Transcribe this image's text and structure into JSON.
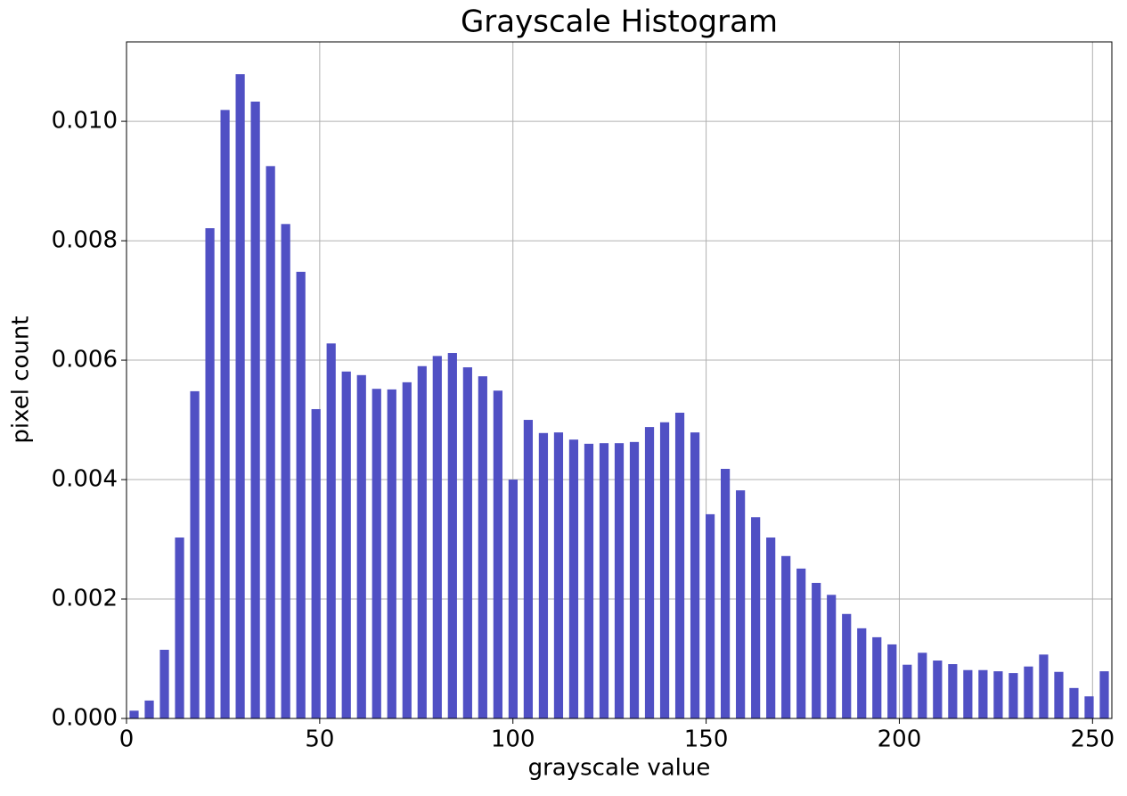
{
  "chart_data": {
    "type": "histogram",
    "title": "Grayscale Histogram",
    "x_label": "grayscale value",
    "y_label": "pixel count",
    "color": "#5050c4",
    "grid": true,
    "bins": [
      0,
      3.92,
      7.85,
      11.77,
      15.69,
      19.62,
      23.54,
      27.46,
      31.38,
      35.31,
      39.23,
      43.15,
      47.08,
      51.0,
      54.92,
      58.85,
      62.77,
      66.69,
      70.62,
      74.54,
      78.46,
      82.38,
      86.31,
      90.23,
      94.15,
      98.08,
      102.0,
      105.92,
      109.85,
      113.77,
      117.69,
      121.62,
      125.54,
      129.46,
      133.38,
      137.31,
      141.23,
      145.15,
      149.08,
      153.0,
      156.92,
      160.85,
      164.77,
      168.69,
      172.62,
      176.54,
      180.46,
      184.38,
      188.31,
      192.23,
      196.15,
      200.08,
      204.0,
      207.92,
      211.85,
      215.77,
      219.69,
      223.62,
      227.54,
      231.46,
      235.38,
      239.31,
      243.23,
      247.15,
      251.08,
      255.0
    ],
    "values": [
      0.00013,
      0.0003,
      0.00115,
      0.00303,
      0.00548,
      0.00821,
      0.01019,
      0.01079,
      0.01033,
      0.00925,
      0.00828,
      0.00748,
      0.00518,
      0.00628,
      0.00581,
      0.00575,
      0.00552,
      0.00551,
      0.00563,
      0.0059,
      0.00607,
      0.00612,
      0.00588,
      0.00573,
      0.00549,
      0.004,
      0.005,
      0.00478,
      0.00479,
      0.00467,
      0.0046,
      0.00461,
      0.00461,
      0.00463,
      0.00488,
      0.00496,
      0.00512,
      0.00479,
      0.00342,
      0.00418,
      0.00382,
      0.00337,
      0.00303,
      0.00272,
      0.00251,
      0.00227,
      0.00207,
      0.00175,
      0.00151,
      0.00136,
      0.00124,
      0.0009,
      0.0011,
      0.00097,
      0.00091,
      0.00081,
      0.00081,
      0.00079,
      0.00076,
      0.00087,
      0.00107,
      0.00078,
      0.00051,
      0.00037,
      0.00079
    ],
    "xlim": [
      0,
      255
    ],
    "xticks": [
      0,
      50,
      100,
      150,
      200,
      250
    ],
    "ylim": [
      0,
      0.01133
    ],
    "yticks": [
      {
        "value": 0,
        "label": "0.000"
      },
      {
        "value": 0.002,
        "label": "0.002"
      },
      {
        "value": 0.004,
        "label": "0.004"
      },
      {
        "value": 0.006,
        "label": "0.006"
      },
      {
        "value": 0.008,
        "label": "0.008"
      },
      {
        "value": 0.01,
        "label": "0.010"
      }
    ]
  }
}
